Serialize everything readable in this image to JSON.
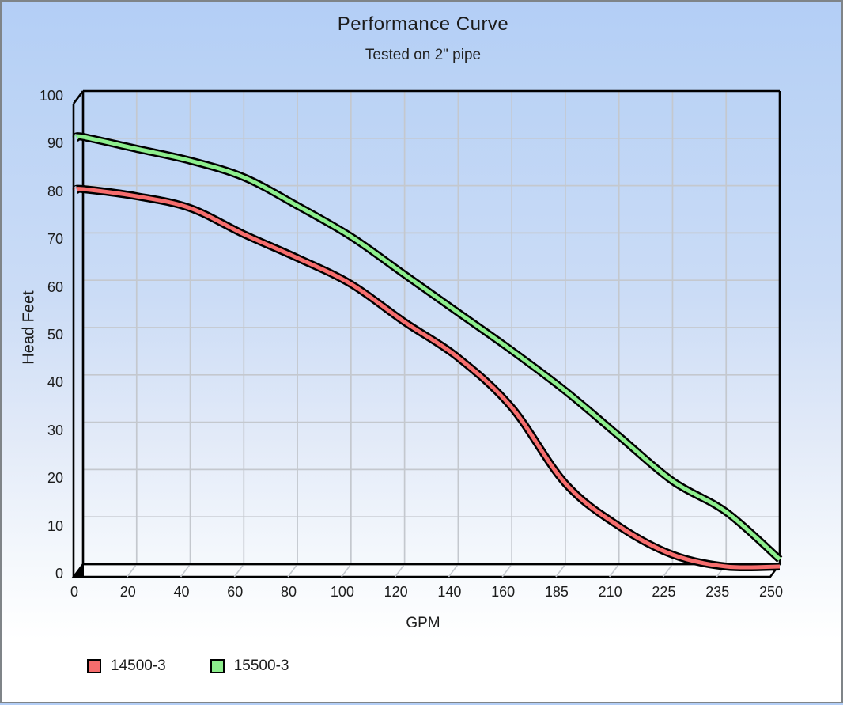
{
  "window": {
    "background_top": "#b3cef6",
    "background_bottom": "#ffffff",
    "frame_border_color": "#7f8488",
    "text_color": "#1c1c1c"
  },
  "chart_data": {
    "type": "line",
    "title": "Performance Curve",
    "subtitle": "Tested on 2\" pipe",
    "xlabel": "GPM",
    "ylabel": "Head Feet",
    "categories": [
      "0",
      "20",
      "40",
      "60",
      "80",
      "100",
      "120",
      "140",
      "160",
      "185",
      "210",
      "225",
      "235",
      "250"
    ],
    "y_ticks": [
      0,
      10,
      20,
      30,
      40,
      50,
      60,
      70,
      80,
      90,
      100
    ],
    "ylim": [
      0,
      100
    ],
    "grid": true,
    "gridline_color": "#c4c8ce",
    "wall_color": "#000000",
    "floor_fill": "#fbfcfe",
    "legend_position": "bottom-left",
    "style_3d_axis": true,
    "series": [
      {
        "name": "14500-3",
        "color": "#f66d6d",
        "outline_color": "#000000",
        "values": [
          80,
          78.5,
          76,
          70.5,
          65.5,
          60,
          52,
          44.5,
          34,
          18,
          9,
          3,
          0.5,
          0.5
        ]
      },
      {
        "name": "15500-3",
        "color": "#8dee8d",
        "outline_color": "#000000",
        "values": [
          91,
          88.5,
          86,
          82.5,
          76.5,
          70,
          62,
          54,
          46,
          37.5,
          28,
          18.5,
          12,
          2
        ]
      }
    ]
  }
}
